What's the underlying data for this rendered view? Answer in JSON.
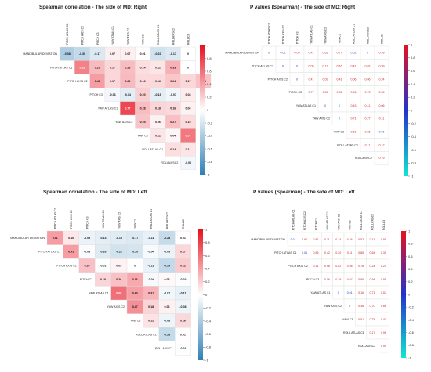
{
  "variables": [
    "MANDIBULAR DEVIATION",
    "PITCH ATLAS C1",
    "PITCH AXIS C2",
    "PITCH C3",
    "YAW ATLAS C1",
    "YAW AXIS C2",
    "YAW C3",
    "ROLL ATLAS C1",
    "ROLLAXISC2",
    "ROLLC3"
  ],
  "col_labels": [
    "PITCH ATLAS C1",
    "PITCH AXIS C2",
    "PITCH C3",
    "YAW ATLAS C1",
    "YAW AXIS C2",
    "YAW C3",
    "ROLL ATLAS C1",
    "ROLLAXISC2",
    "ROLLC3"
  ],
  "row_labels": [
    "MANDIBULAR DEVIATION",
    "PITCH ATLAS C1",
    "PITCH AXIS C2",
    "PITCH C3",
    "YAW ATLAS C1",
    "YAW AXIS C2",
    "YAW C3",
    "ROLL ATLAS C1",
    "ROLLAXISC2"
  ],
  "colors": {
    "corr_neg": "#2f7fb5",
    "corr_mid": "#ffffff",
    "corr_pos": "#e8111e",
    "p_low": "#11e6d0",
    "p_mid": "#2233cc",
    "p_high": "#e8111e",
    "p_text_sig": "#1a3fcf",
    "p_text_nonsig": "#d21e24"
  },
  "chart_data": [
    {
      "type": "heatmap",
      "title": "Spearman correlation - The side of MD:  Right",
      "scale": "correlation",
      "colorbar_ticks": [
        "1",
        "0.8",
        "0.6",
        "0.4",
        "0.2",
        "0",
        "-0.2",
        "-0.4",
        "-0.6",
        "-0.8",
        "-1"
      ],
      "values": [
        [
          -0.38,
          -0.3,
          -0.17,
          0.07,
          0.07,
          0.01,
          -0.22,
          -0.17,
          0
        ],
        [
          0.53,
          0.29,
          0.17,
          0.28,
          0.14,
          0.11,
          0.33,
          0.0
        ],
        [
          0.41,
          0.17,
          0.29,
          0.16,
          0.16,
          0.24,
          0.17,
          0.26
        ],
        [
          -0.06,
          -0.14,
          0.2,
          -0.13,
          -0.07,
          0.08
        ],
        [
          0.77,
          0.28,
          0.18,
          0.16,
          0.06
        ],
        [
          0.25,
          0.06,
          0.27,
          0.15
        ],
        [
          0.11,
          0.04,
          0.57
        ],
        [
          0.14,
          0.11
        ],
        [
          -0.06
        ]
      ]
    },
    {
      "type": "heatmap",
      "title": "P values (Spearman) - The side of MD:  Right",
      "scale": "pvalue",
      "colorbar_ticks": [
        "1",
        "0.8",
        "0.6",
        "0.4",
        "0.2",
        "0",
        "-0.2",
        "-0.4",
        "-0.6",
        "-0.8",
        "-1"
      ],
      "values": [
        [
          0.0,
          0.02,
          0.05,
          0.41,
          0.61,
          0.77,
          0.02,
          0.0,
          0.99
        ],
        [
          0.0,
          0.0,
          0.05,
          0.12,
          0.16,
          0.41,
          0.07,
          0.99
        ],
        [
          0.0,
          0.41,
          0.09,
          0.41,
          0.06,
          0.06,
          0.24
        ],
        [
          0.77,
          0.53,
          0.31,
          0.06,
          0.73,
          0.05
        ],
        [
          0.0,
          0.0,
          0.43,
          0.41,
          0.06
        ],
        [
          0.0,
          0.71,
          0.27,
          0.11
        ],
        [
          0.61,
          0.86,
          0.01
        ],
        [
          0.11,
          0.12
        ],
        [
          0.79
        ]
      ]
    },
    {
      "type": "heatmap",
      "title": "Spearman correlation - The side of MD:  Left",
      "scale": "correlation",
      "colorbar_ticks": [
        "1",
        "0.8",
        "0.6",
        "0.4",
        "0.2",
        "0",
        "-0.2",
        "-0.4",
        "-0.6",
        "-0.8",
        "-1"
      ],
      "values": [
        [
          0.41,
          0.1,
          -0.09,
          -0.13,
          -0.15,
          -0.17,
          -0.11,
          -0.28,
          0.01
        ],
        [
          0.41,
          -0.03,
          -0.16,
          -0.22,
          -0.2,
          -0.04,
          -0.09,
          0.17
        ],
        [
          0.26,
          -0.01,
          0.05,
          0,
          -0.11,
          -0.29,
          0.22
        ],
        [
          0.18,
          0.26,
          0.36,
          -0.04,
          0.03,
          -0.02
        ],
        [
          0.6,
          0.4,
          0.31,
          -0.07,
          -0.11
        ],
        [
          0.47,
          0.18,
          0.06,
          -0.08
        ],
        [
          0.12,
          -0.08,
          0.16
        ],
        [
          -0.28,
          0.01
        ],
        [
          -0.01
        ]
      ]
    },
    {
      "type": "heatmap",
      "title": "P values (Spearman) - The side of MD:  Left",
      "scale": "pvalue",
      "colorbar_ticks": [
        "1",
        "0.8",
        "0.6",
        "0.4",
        "0.2",
        "0",
        "-0.2",
        "-0.4",
        "-0.6",
        "-0.8",
        "-1"
      ],
      "values": [
        [
          0.01,
          0.6,
          0.81,
          0.11,
          0.14,
          0.46,
          0.57,
          0.11,
          0.95
        ],
        [
          0.01,
          0.86,
          0.42,
          0.2,
          0.11,
          0.85,
          0.64,
          0.3
        ],
        [
          0.11,
          0.96,
          0.82,
          0.96,
          0.76,
          0.24,
          0.21
        ],
        [
          0.16,
          0.19,
          0.07,
          0.85,
          0.94,
          0.95
        ],
        [
          0.0,
          0.01,
          0.16,
          0.71,
          0.57
        ],
        [
          0.0,
          0.36,
          0.7,
          0.66
        ],
        [
          0.51,
          0.75,
          0.41
        ],
        [
          0.17,
          0.96
        ],
        [
          0.95
        ]
      ]
    }
  ]
}
